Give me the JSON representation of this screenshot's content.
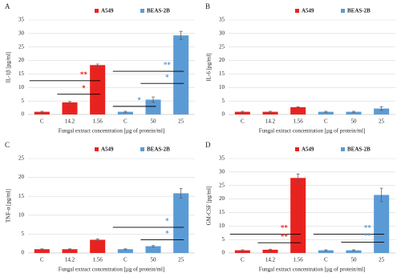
{
  "chart_data": [
    {
      "type": "bar",
      "panel": "A",
      "ylabel": "IL-1β [pg/ml]",
      "xlabel": "Fungal extract concentration [µg of protein/ml]",
      "categories": [
        "C",
        "14.2",
        "1.56",
        "C",
        "50",
        "25"
      ],
      "series": [
        {
          "name": "A549",
          "color": "#e8231f",
          "values": [
            1,
            4.5,
            18.3,
            null,
            null,
            null
          ],
          "errors": [
            0.2,
            0.3,
            0.4,
            null,
            null,
            null
          ]
        },
        {
          "name": "BEAS-2B",
          "color": "#5b9bd5",
          "values": [
            null,
            null,
            null,
            1,
            5.5,
            29.3
          ],
          "errors": [
            null,
            null,
            null,
            0.2,
            1,
            1.5
          ]
        }
      ],
      "ylim": [
        0,
        35
      ],
      "yticks": [
        0,
        5,
        10,
        15,
        20,
        25,
        30,
        35
      ],
      "grid": true,
      "annotations": [
        {
          "text": "**",
          "color": "#e8231f",
          "from": 0,
          "to": 2,
          "y": 12.5
        },
        {
          "text": "*",
          "color": "#e8231f",
          "from": 1,
          "to": 2,
          "y": 7.5
        },
        {
          "text": "**",
          "color": "#5b9bd5",
          "from": 3,
          "to": 5,
          "y": 16
        },
        {
          "text": "*",
          "color": "#5b9bd5",
          "from": 4,
          "to": 5,
          "y": 11.5
        },
        {
          "text": "*",
          "color": "#5b9bd5",
          "from": 3,
          "to": 4,
          "y": 3
        }
      ]
    },
    {
      "type": "bar",
      "panel": "B",
      "ylabel": "IL-6 [pg/ml]",
      "xlabel": "Fungal extract concentration [µg of protein/ml]",
      "categories": [
        "C",
        "14.2",
        "1.56",
        "C",
        "50",
        "25"
      ],
      "series": [
        {
          "name": "A549",
          "color": "#e8231f",
          "values": [
            1,
            1,
            2.7,
            null,
            null,
            null
          ],
          "errors": [
            0.2,
            0.2,
            0.2,
            null,
            null,
            null
          ]
        },
        {
          "name": "BEAS-2B",
          "color": "#5b9bd5",
          "values": [
            null,
            null,
            null,
            1,
            1,
            2.2
          ],
          "errors": [
            null,
            null,
            null,
            0.2,
            0.2,
            0.7
          ]
        }
      ],
      "ylim": [
        0,
        35
      ],
      "yticks": [
        0,
        5,
        10,
        15,
        20,
        25,
        30,
        35
      ],
      "grid": true,
      "annotations": []
    },
    {
      "type": "bar",
      "panel": "C",
      "ylabel": "TNF-α [pg/ml]",
      "xlabel": "Fungal extract concentration [µg of protein/ml]",
      "categories": [
        "C",
        "14.2",
        "1.56",
        "C",
        "50",
        "25"
      ],
      "series": [
        {
          "name": "A549",
          "color": "#e8231f",
          "values": [
            1,
            1,
            3.5,
            null,
            null,
            null
          ],
          "errors": [
            0.1,
            0.1,
            0.2,
            null,
            null,
            null
          ]
        },
        {
          "name": "BEAS-2B",
          "color": "#5b9bd5",
          "values": [
            null,
            null,
            null,
            1,
            1.8,
            15.8
          ],
          "errors": [
            null,
            null,
            null,
            0.1,
            0.2,
            1.3
          ]
        }
      ],
      "ylim": [
        0,
        25
      ],
      "yticks": [
        0,
        5,
        10,
        15,
        20,
        25
      ],
      "grid": true,
      "annotations": [
        {
          "text": "*",
          "color": "#5b9bd5",
          "from": 3,
          "to": 5,
          "y": 6.8
        },
        {
          "text": "*",
          "color": "#5b9bd5",
          "from": 4,
          "to": 5,
          "y": 3.5
        }
      ]
    },
    {
      "type": "bar",
      "panel": "D",
      "ylabel": "GM-CSF [pg/ml]",
      "xlabel": "Fungal extract concentration [µg of protein/ml]",
      "categories": [
        "C",
        "14.2",
        "1.56",
        "C",
        "50",
        "25"
      ],
      "series": [
        {
          "name": "A549",
          "color": "#e8231f",
          "values": [
            1,
            1.2,
            27.8,
            null,
            null,
            null
          ],
          "errors": [
            0.2,
            0.2,
            1.5,
            null,
            null,
            null
          ]
        },
        {
          "name": "BEAS-2B",
          "color": "#5b9bd5",
          "values": [
            null,
            null,
            null,
            1,
            1,
            21.5
          ],
          "errors": [
            null,
            null,
            null,
            0.2,
            0.2,
            2.5
          ]
        }
      ],
      "ylim": [
        0,
        35
      ],
      "yticks": [
        0,
        5,
        10,
        15,
        20,
        25,
        30,
        35
      ],
      "grid": true,
      "annotations": [
        {
          "text": "**",
          "color": "#e8231f",
          "from": 0,
          "to": 2,
          "y": 7
        },
        {
          "text": "**",
          "color": "#e8231f",
          "from": 1,
          "to": 2,
          "y": 3.8
        },
        {
          "text": "**",
          "color": "#5b9bd5",
          "from": 3,
          "to": 5,
          "y": 7
        },
        {
          "text": "**",
          "color": "#5b9bd5",
          "from": 4,
          "to": 5,
          "y": 4
        }
      ]
    }
  ]
}
